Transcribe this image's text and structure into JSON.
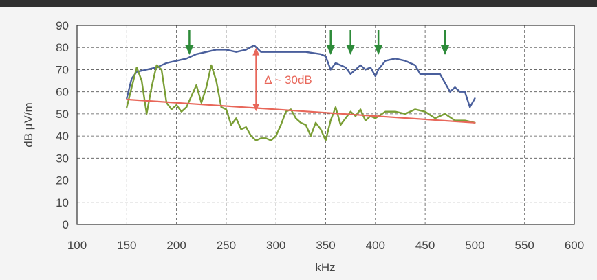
{
  "chart_data": {
    "type": "line",
    "xlabel": "kHz",
    "ylabel": "dB µV/m",
    "xlim": [
      100,
      600
    ],
    "ylim": [
      0,
      90
    ],
    "x_ticks": [
      100,
      150,
      200,
      250,
      300,
      350,
      400,
      450,
      500,
      550,
      600
    ],
    "y_ticks": [
      0,
      10,
      20,
      30,
      40,
      50,
      60,
      70,
      80,
      90
    ],
    "grid": true,
    "series": [
      {
        "color": "#4a5f9c",
        "x": [
          150,
          155,
          160,
          170,
          180,
          190,
          200,
          210,
          220,
          230,
          240,
          250,
          260,
          270,
          278,
          285,
          295,
          310,
          330,
          345,
          350,
          355,
          360,
          365,
          370,
          375,
          380,
          385,
          390,
          395,
          400,
          403,
          410,
          420,
          430,
          440,
          445,
          455,
          465,
          470,
          475,
          480,
          485,
          490,
          495,
          500
        ],
        "y": [
          57,
          66,
          69,
          70,
          71,
          73,
          74,
          75,
          77,
          78,
          79,
          79,
          78,
          79,
          81,
          78,
          78,
          78,
          78,
          77,
          76,
          70,
          73,
          72,
          71,
          68,
          70,
          72,
          70,
          71,
          67,
          70,
          74,
          75,
          74,
          72,
          68,
          68,
          68,
          64,
          60,
          62,
          60,
          60,
          53,
          57
        ]
      },
      {
        "color": "#7a9e35",
        "x": [
          150,
          155,
          160,
          165,
          170,
          175,
          180,
          185,
          190,
          195,
          200,
          205,
          210,
          215,
          220,
          225,
          230,
          235,
          240,
          245,
          250,
          255,
          260,
          265,
          270,
          275,
          280,
          285,
          290,
          295,
          300,
          305,
          310,
          315,
          320,
          325,
          330,
          335,
          340,
          345,
          350,
          355,
          360,
          365,
          370,
          375,
          380,
          385,
          390,
          395,
          400,
          410,
          420,
          430,
          440,
          450,
          460,
          470,
          480,
          490,
          500
        ],
        "y": [
          53,
          62,
          71,
          65,
          50,
          62,
          72,
          70,
          55,
          52,
          54,
          51,
          53,
          58,
          63,
          55,
          62,
          72,
          65,
          53,
          52,
          45,
          48,
          43,
          44,
          40,
          38,
          39,
          39,
          38,
          40,
          45,
          51,
          52,
          48,
          46,
          45,
          40,
          46,
          43,
          38,
          47,
          53,
          45,
          48,
          51,
          49,
          52,
          47,
          49,
          48,
          51,
          51,
          50,
          52,
          51,
          48,
          50,
          47,
          47,
          46
        ]
      },
      {
        "color": "#e8675a",
        "x": [
          150,
          500
        ],
        "y": [
          56.5,
          46
        ]
      }
    ],
    "arrows_x": [
      213,
      355,
      375,
      403,
      470
    ],
    "delta_annotation": {
      "label": "Δ ~ 30dB",
      "x": 280,
      "y_from": 80.5,
      "y_to": 50.5
    }
  }
}
